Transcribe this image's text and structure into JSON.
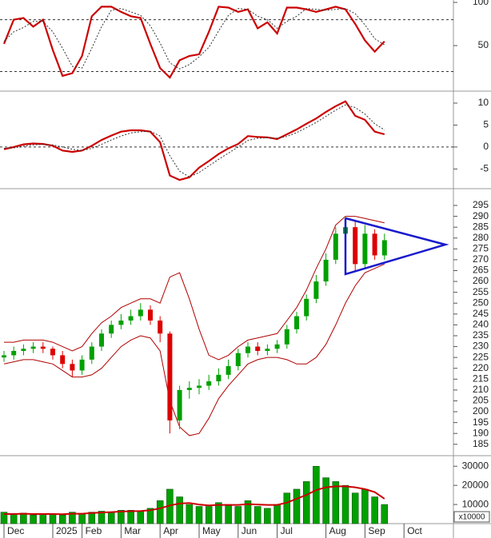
{
  "chart_data": [
    {
      "type": "line",
      "ylim": [
        1,
        102.8
      ],
      "yticks": [
        50,
        100
      ],
      "hlines": [
        80,
        20
      ],
      "series": [
        {
          "color": "#cc0000",
          "dashed": false,
          "values": [
            52,
            80,
            82,
            72,
            80,
            45,
            15,
            18,
            38,
            84,
            95,
            95,
            89,
            84,
            82,
            52,
            24,
            13,
            33,
            38,
            40,
            66,
            95,
            94,
            89,
            92,
            70,
            77,
            64,
            94,
            94,
            92,
            89,
            92,
            95,
            92,
            75,
            56,
            43,
            55,
            null,
            null,
            null,
            null,
            null,
            null
          ]
        },
        {
          "color": "#333333",
          "dashed": true,
          "values": [
            55,
            66,
            71,
            78,
            78,
            66,
            47,
            26,
            24,
            47,
            72,
            91,
            93,
            89,
            85,
            73,
            53,
            30,
            23,
            28,
            37,
            48,
            67,
            85,
            93,
            92,
            84,
            80,
            70,
            78,
            84,
            93,
            92,
            91,
            92,
            93,
            87,
            74,
            58,
            51,
            null,
            null,
            null,
            null,
            null,
            null
          ]
        }
      ]
    },
    {
      "type": "line",
      "ylim": [
        -9.3,
        12
      ],
      "yticks": [
        10,
        5,
        0,
        -5
      ],
      "hlines": [
        0
      ],
      "series": [
        {
          "color": "#cc0000",
          "dashed": false,
          "values": [
            -0.5,
            0,
            0.6,
            0.8,
            0.7,
            0.3,
            -0.8,
            -1.1,
            -0.8,
            0.3,
            1.6,
            2.6,
            3.5,
            3.8,
            3.8,
            3.5,
            1.1,
            -6.5,
            -7.5,
            -6.9,
            -4.7,
            -3.2,
            -1.6,
            -0.3,
            0.7,
            2.5,
            2.3,
            2.2,
            1.8,
            2.9,
            4.0,
            5.3,
            6.5,
            8.0,
            9.3,
            10.4,
            7.1,
            6.2,
            3.5,
            2.9,
            null,
            null,
            null,
            null,
            null,
            null
          ]
        },
        {
          "color": "#333333",
          "dashed": true,
          "values": [
            -0.3,
            -0.2,
            0.2,
            0.5,
            0.6,
            0.5,
            0,
            -0.5,
            -0.8,
            -0.3,
            0.6,
            1.6,
            2.5,
            3.2,
            3.5,
            3.6,
            2.5,
            -2,
            -5.5,
            -6.8,
            -5.8,
            -4.3,
            -2.8,
            -1.4,
            0,
            1.5,
            2.0,
            2.1,
            2.0,
            2.4,
            3.3,
            4.4,
            5.6,
            7.0,
            8.4,
            9.6,
            9.0,
            7.5,
            5.3,
            3.9,
            null,
            null,
            null,
            null,
            null,
            null
          ]
        }
      ]
    },
    {
      "type": "candlestick",
      "ylim": [
        180.5,
        302
      ],
      "yticks": [
        185,
        190,
        195,
        200,
        205,
        210,
        215,
        220,
        225,
        230,
        235,
        240,
        245,
        250,
        255,
        260,
        265,
        270,
        275,
        280,
        285,
        290,
        295
      ],
      "up_color": "#00a000",
      "down_color": "#dd0000",
      "open": [
        225,
        226,
        228,
        229,
        230,
        229,
        226,
        222,
        219,
        224,
        230,
        236,
        240,
        242,
        244,
        247,
        242,
        236,
        196,
        210,
        211,
        212,
        214,
        217,
        221,
        227,
        230,
        228,
        229,
        231,
        238,
        244,
        252,
        260,
        270,
        282,
        285,
        268,
        282,
        272
      ],
      "high": [
        228,
        230,
        231,
        232,
        232,
        230,
        228,
        224,
        226,
        232,
        238,
        242,
        245,
        247,
        250,
        249,
        244,
        237,
        212,
        214,
        215,
        217,
        220,
        224,
        229,
        232,
        232,
        231,
        233,
        240,
        246,
        254,
        263,
        273,
        285,
        290,
        288,
        286,
        284,
        282
      ],
      "low": [
        223,
        224,
        226,
        227,
        227,
        224,
        220,
        216,
        217,
        222,
        228,
        234,
        238,
        240,
        242,
        240,
        232,
        190,
        192,
        206,
        208,
        210,
        212,
        215,
        219,
        225,
        226,
        226,
        227,
        229,
        236,
        242,
        250,
        258,
        268,
        280,
        265,
        266,
        270,
        270
      ],
      "close": [
        226,
        228,
        229,
        230,
        229,
        226,
        222,
        219,
        224,
        230,
        236,
        240,
        242,
        244,
        247,
        242,
        236,
        196,
        210,
        211,
        212,
        214,
        217,
        221,
        227,
        230,
        228,
        229,
        231,
        238,
        244,
        252,
        260,
        270,
        282,
        285,
        268,
        282,
        272,
        279
      ],
      "series": [
        {
          "color": "#b00000",
          "values": [
            232,
            232,
            233,
            233,
            233,
            232,
            230,
            228,
            230,
            236,
            241,
            244,
            248,
            250,
            252,
            252,
            250,
            262,
            264,
            252,
            238,
            226,
            224,
            226,
            230,
            233,
            234,
            235,
            236,
            242,
            248,
            256,
            266,
            275,
            286,
            290,
            290,
            289,
            288,
            287
          ]
        },
        {
          "color": "#b00000",
          "values": [
            222,
            223,
            224,
            224,
            223,
            222,
            219,
            216,
            216,
            217,
            220,
            225,
            230,
            233,
            235,
            234,
            228,
            205,
            193,
            189,
            190,
            197,
            206,
            212,
            217,
            222,
            224,
            225,
            225,
            224,
            222,
            222,
            225,
            231,
            240,
            250,
            258,
            264,
            266,
            268
          ]
        }
      ]
    },
    {
      "type": "bar",
      "ylim": [
        0,
        34700
      ],
      "yticks": [
        30000,
        20000,
        10000
      ],
      "unit_label": "x10000",
      "color": "#00a000",
      "categories": [
        "Dec",
        null,
        null,
        null,
        null,
        "2025",
        null,
        null,
        "Feb",
        null,
        null,
        null,
        "Mar",
        null,
        null,
        null,
        "Apr",
        null,
        null,
        null,
        "May",
        null,
        null,
        null,
        "Jun",
        null,
        null,
        null,
        "Jul",
        null,
        null,
        null,
        null,
        "Aug",
        null,
        null,
        null,
        "Sep",
        null,
        null,
        null,
        "Oct",
        null,
        null,
        null,
        null
      ],
      "values": [
        6000,
        5000,
        5500,
        4500,
        5000,
        5000,
        4500,
        6000,
        5000,
        6000,
        6500,
        6000,
        7000,
        7000,
        6500,
        8000,
        12000,
        18000,
        14000,
        10000,
        9000,
        9000,
        11000,
        10000,
        9000,
        12000,
        9000,
        8000,
        10000,
        16000,
        18000,
        22000,
        30000,
        24000,
        22000,
        20000,
        16000,
        18000,
        14000,
        10000,
        null,
        null,
        null,
        null,
        null,
        null
      ],
      "ma": {
        "color": "#cc0000",
        "values": [
          5000,
          5000,
          5200,
          5000,
          5000,
          5000,
          4900,
          5200,
          5200,
          5500,
          5800,
          6000,
          6300,
          6500,
          6600,
          7000,
          8000,
          9500,
          10500,
          10800,
          10000,
          9500,
          9800,
          9800,
          9800,
          10200,
          10000,
          9800,
          9800,
          11000,
          13000,
          15000,
          17500,
          19000,
          19500,
          19500,
          19000,
          18000,
          16500,
          13000,
          null,
          null,
          null,
          null,
          null,
          null
        ]
      }
    }
  ]
}
